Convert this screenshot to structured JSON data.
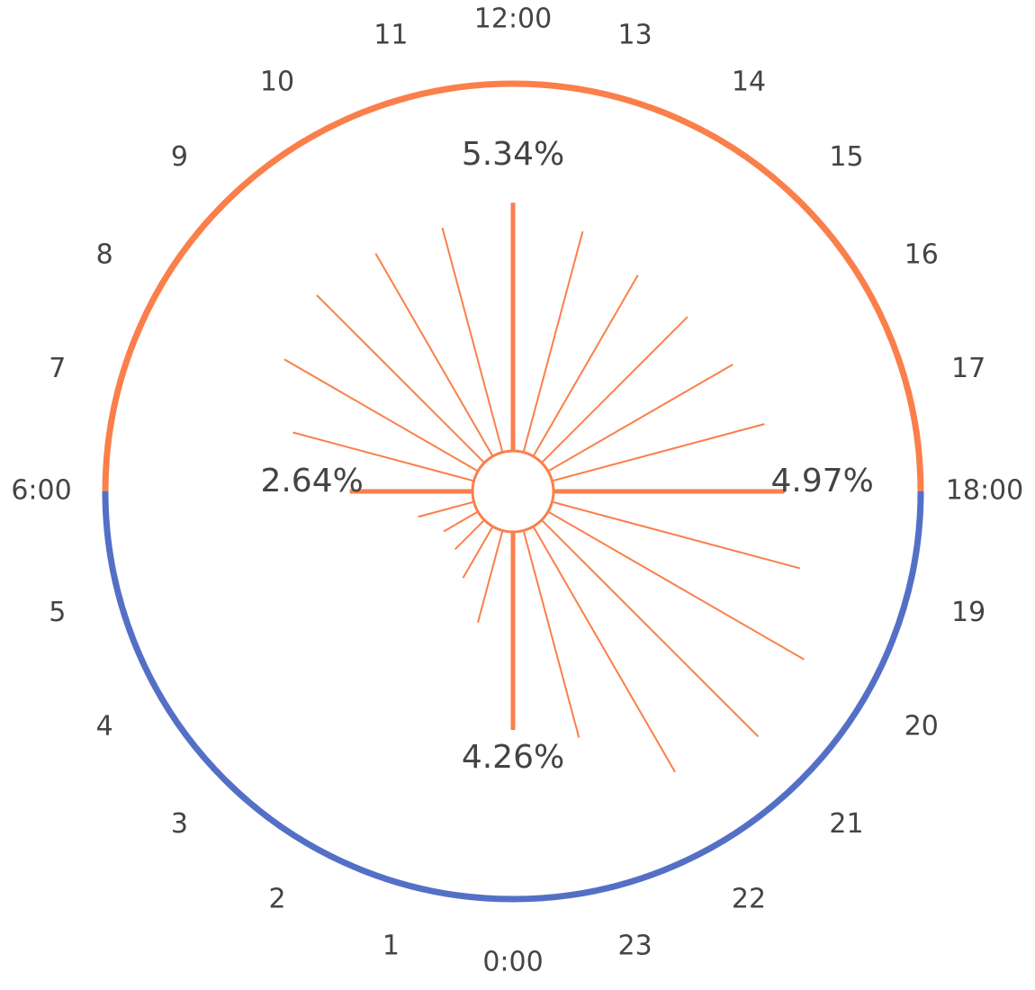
{
  "chart_data": {
    "type": "radial-bar",
    "categories": [
      "0:00",
      "1",
      "2",
      "3",
      "4",
      "5",
      "6:00",
      "7",
      "8",
      "9",
      "10",
      "11",
      "12:00",
      "13",
      "14",
      "15",
      "16",
      "17",
      "18:00",
      "19",
      "20",
      "21",
      "22",
      "23"
    ],
    "values": [
      4.26,
      2.05,
      1.28,
      0.89,
      0.85,
      1.24,
      2.64,
      4.03,
      4.81,
      5.1,
      5.04,
      5.0,
      5.34,
      4.92,
      4.5,
      4.44,
      4.59,
      4.73,
      4.97,
      5.52,
      6.36,
      6.59,
      6.1,
      4.61
    ],
    "value_labels": [
      "4.26%",
      null,
      null,
      null,
      null,
      null,
      "2.64%",
      null,
      null,
      null,
      null,
      null,
      "5.34%",
      null,
      null,
      null,
      null,
      null,
      "4.97%",
      null,
      null,
      null,
      null,
      null
    ],
    "color": "#fa7f4b",
    "ring_colors": [
      "#5470c6",
      "#fa7f4b"
    ],
    "rlim": [
      0,
      7.9
    ]
  }
}
